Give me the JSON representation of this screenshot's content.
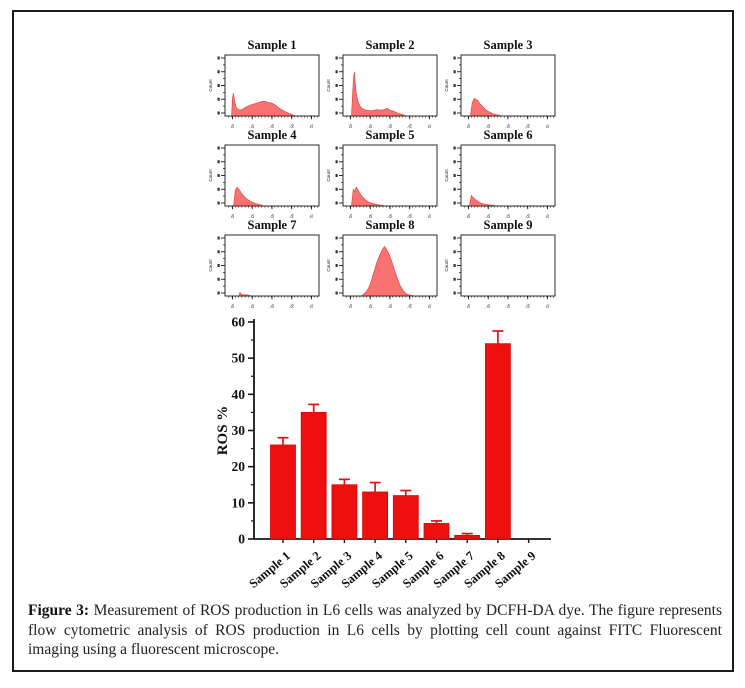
{
  "figure": {
    "caption_label": "Figure 3:",
    "caption_text": "Measurement of ROS production in L6 cells was analyzed by DCFH-DA dye. The figure represents flow cytometric analysis of ROS production in L6 cells by plotting cell count against FITC Fluorescent imaging using a fluorescent microscope."
  },
  "colors": {
    "histogram_fill": "#f97272",
    "histogram_edge": "#e23c3c",
    "bar_fill": "#ee0f0f",
    "bar_edge": "#d40808",
    "error_bar": "#e01212",
    "axis": "#161616",
    "text": "#111111"
  },
  "chart_data": [
    {
      "type": "area",
      "subtype": "flow-cytometry-histogram-grid",
      "y_axis_label": "Count",
      "x_tick_labels": [
        "10⁰",
        "10¹",
        "10²",
        "10³",
        "10⁴"
      ],
      "panels": [
        {
          "title": "Sample 1",
          "points": [
            [
              7,
              0
            ],
            [
              8,
              30
            ],
            [
              9,
              38
            ],
            [
              10,
              26
            ],
            [
              12,
              13
            ],
            [
              15,
              9
            ],
            [
              18,
              10
            ],
            [
              22,
              14
            ],
            [
              26,
              17
            ],
            [
              30,
              19
            ],
            [
              34,
              21
            ],
            [
              38,
              23
            ],
            [
              42,
              24
            ],
            [
              46,
              22
            ],
            [
              50,
              21
            ],
            [
              54,
              17
            ],
            [
              58,
              12
            ],
            [
              62,
              8
            ],
            [
              66,
              5
            ],
            [
              70,
              2
            ],
            [
              74,
              0
            ]
          ]
        },
        {
          "title": "Sample 2",
          "points": [
            [
              9,
              0
            ],
            [
              10,
              30
            ],
            [
              11,
              58
            ],
            [
              12,
              74
            ],
            [
              13,
              56
            ],
            [
              14,
              38
            ],
            [
              16,
              24
            ],
            [
              18,
              16
            ],
            [
              20,
              12
            ],
            [
              24,
              9
            ],
            [
              28,
              8
            ],
            [
              32,
              8
            ],
            [
              36,
              10
            ],
            [
              40,
              9
            ],
            [
              44,
              10
            ],
            [
              47,
              12
            ],
            [
              50,
              9
            ],
            [
              54,
              7
            ],
            [
              58,
              4
            ],
            [
              62,
              2
            ],
            [
              66,
              0
            ]
          ]
        },
        {
          "title": "Sample 3",
          "points": [
            [
              10,
              0
            ],
            [
              12,
              22
            ],
            [
              14,
              29
            ],
            [
              16,
              27
            ],
            [
              18,
              25
            ],
            [
              20,
              20
            ],
            [
              23,
              15
            ],
            [
              26,
              10
            ],
            [
              30,
              6
            ],
            [
              34,
              3
            ],
            [
              38,
              1
            ],
            [
              42,
              0
            ]
          ]
        },
        {
          "title": "Sample 4",
          "points": [
            [
              9,
              0
            ],
            [
              11,
              26
            ],
            [
              13,
              31
            ],
            [
              15,
              27
            ],
            [
              17,
              22
            ],
            [
              20,
              16
            ],
            [
              23,
              11
            ],
            [
              27,
              7
            ],
            [
              31,
              4
            ],
            [
              35,
              2
            ],
            [
              40,
              0
            ]
          ]
        },
        {
          "title": "Sample 5",
          "points": [
            [
              9,
              0
            ],
            [
              11,
              28
            ],
            [
              12,
              23
            ],
            [
              14,
              31
            ],
            [
              16,
              26
            ],
            [
              18,
              20
            ],
            [
              21,
              14
            ],
            [
              24,
              9
            ],
            [
              28,
              5
            ],
            [
              32,
              3
            ],
            [
              37,
              1
            ],
            [
              43,
              0
            ]
          ]
        },
        {
          "title": "Sample 6",
          "points": [
            [
              9,
              0
            ],
            [
              11,
              17
            ],
            [
              13,
              13
            ],
            [
              15,
              10
            ],
            [
              18,
              7
            ],
            [
              21,
              4
            ],
            [
              25,
              2
            ],
            [
              30,
              1
            ],
            [
              36,
              0
            ]
          ]
        },
        {
          "title": "Sample 7",
          "points": [
            [
              15,
              0
            ],
            [
              16,
              5
            ],
            [
              17,
              2
            ],
            [
              19,
              1
            ],
            [
              23,
              1
            ],
            [
              27,
              0
            ]
          ]
        },
        {
          "title": "Sample 8",
          "points": [
            [
              20,
              0
            ],
            [
              24,
              5
            ],
            [
              27,
              12
            ],
            [
              30,
              24
            ],
            [
              33,
              40
            ],
            [
              36,
              56
            ],
            [
              39,
              68
            ],
            [
              42,
              78
            ],
            [
              44,
              83
            ],
            [
              46,
              79
            ],
            [
              49,
              70
            ],
            [
              52,
              57
            ],
            [
              55,
              42
            ],
            [
              58,
              28
            ],
            [
              61,
              16
            ],
            [
              64,
              8
            ],
            [
              67,
              3
            ],
            [
              70,
              1
            ],
            [
              74,
              0
            ]
          ]
        },
        {
          "title": "Sample 9",
          "points": []
        }
      ]
    },
    {
      "type": "bar",
      "categories": [
        "Sample 1",
        "Sample 2",
        "Sample 3",
        "Sample 4",
        "Sample 5",
        "Sample 6",
        "Sample 7",
        "Sample 8",
        "Sample 9"
      ],
      "values": [
        26,
        35,
        15,
        13,
        12,
        4.3,
        1,
        54,
        0
      ],
      "errors": [
        2,
        2.2,
        1.5,
        2.6,
        1.4,
        0.7,
        0.5,
        3.5,
        0
      ],
      "ylabel": "ROS %",
      "ylim": [
        0,
        60
      ],
      "y_tick_labels": [
        "0",
        "10",
        "20",
        "30",
        "40",
        "50",
        "60"
      ],
      "y_major_step": 10,
      "y_minor_step": 5,
      "grid": "off",
      "legend": "none"
    }
  ]
}
